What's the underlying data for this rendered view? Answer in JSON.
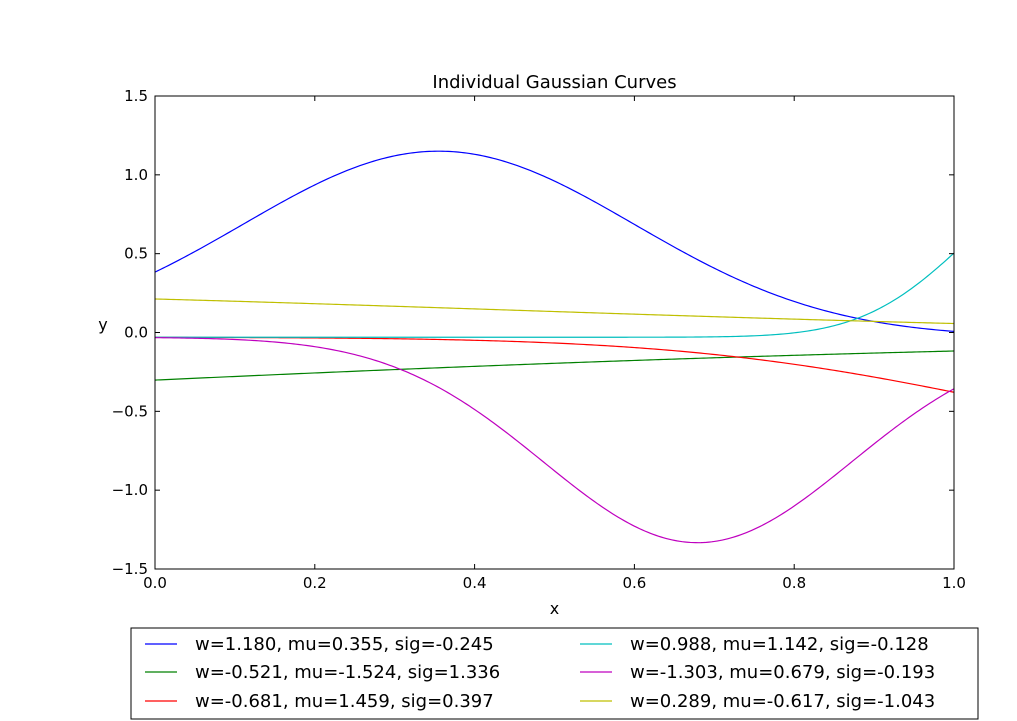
{
  "chart_data": {
    "type": "line",
    "title": "Individual Gaussian Curves",
    "xlabel": "x",
    "ylabel": "y",
    "xlim": [
      0.0,
      1.0
    ],
    "ylim": [
      -1.5,
      1.5
    ],
    "xticks": [
      0.0,
      0.2,
      0.4,
      0.6,
      0.8,
      1.0
    ],
    "xtick_labels": [
      "0.0",
      "0.2",
      "0.4",
      "0.6",
      "0.8",
      "1.0"
    ],
    "yticks": [
      -1.5,
      -1.0,
      -0.5,
      0.0,
      0.5,
      1.0,
      1.5
    ],
    "ytick_labels": [
      "−1.5",
      "−1.0",
      "−0.5",
      "0.0",
      "0.5",
      "1.0",
      "1.5"
    ],
    "grid": false,
    "legend_position": "bottom-center",
    "series": [
      {
        "name": "w=1.180, mu=0.355, sig=-0.245",
        "color": "#0000ff",
        "w": 1.18,
        "mu": 0.355,
        "sig": -0.245,
        "offset": -0.03
      },
      {
        "name": "w=-0.521, mu=-1.524, sig=1.336",
        "color": "#008000",
        "w": -0.521,
        "mu": -1.524,
        "sig": 1.336,
        "offset": -0.03
      },
      {
        "name": "w=-0.681, mu=1.459, sig=0.397",
        "color": "#ff0000",
        "w": -0.681,
        "mu": 1.459,
        "sig": 0.397,
        "offset": -0.03
      },
      {
        "name": "w=0.988, mu=1.142, sig=-0.128",
        "color": "#00bfbf",
        "w": 0.988,
        "mu": 1.142,
        "sig": -0.128,
        "offset": -0.03
      },
      {
        "name": "w=-1.303, mu=0.679, sig=-0.193",
        "color": "#bf00bf",
        "w": -1.303,
        "mu": 0.679,
        "sig": -0.193,
        "offset": -0.03
      },
      {
        "name": "w=0.289, mu=-0.617, sig=-1.043",
        "color": "#bfbf00",
        "w": 0.289,
        "mu": -0.617,
        "sig": -1.043,
        "offset": -0.03
      }
    ]
  }
}
